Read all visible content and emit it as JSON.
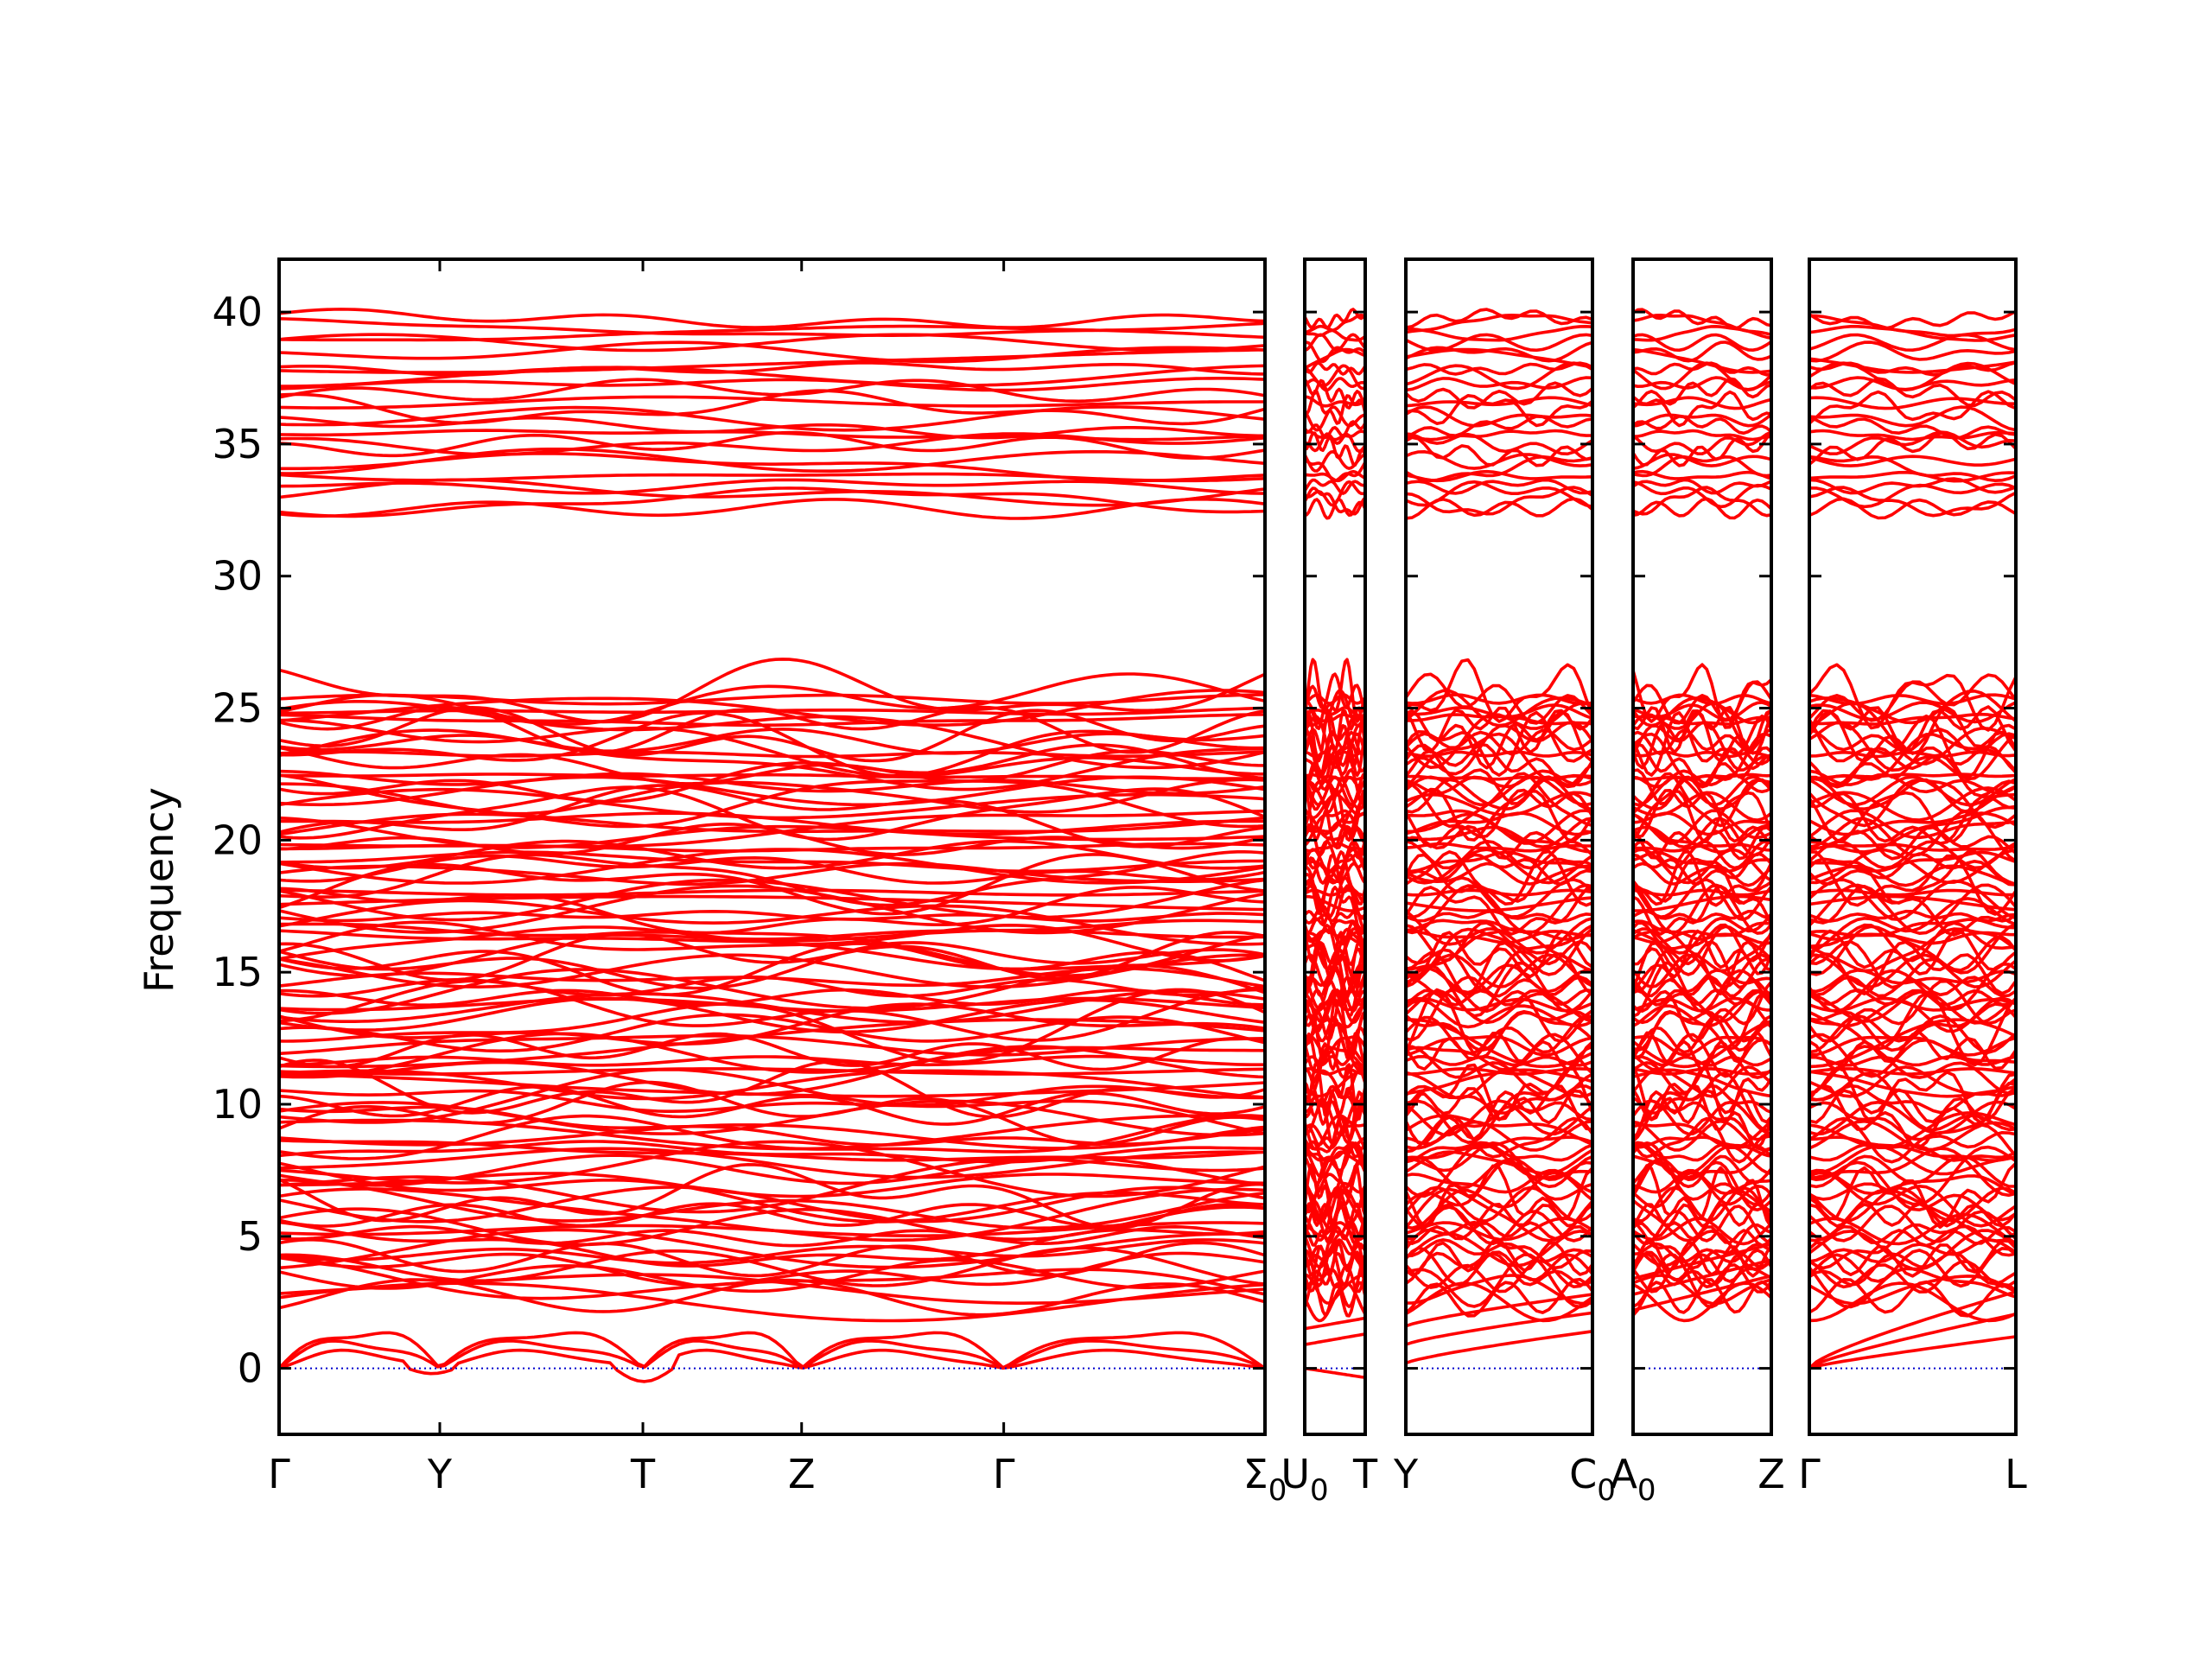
{
  "chart_data": {
    "type": "line",
    "title": "",
    "xlabel": "",
    "ylabel": "Frequency",
    "ylim": [
      -2.5,
      42
    ],
    "yticks": [
      0,
      5,
      10,
      15,
      20,
      25,
      30,
      35,
      40
    ],
    "grid": false,
    "legend": "none",
    "colors": {
      "bands": "#ff0000",
      "zero_line": "#0000cc",
      "frame": "#000000"
    },
    "segments": [
      {
        "points": [
          {
            "main": "Γ",
            "sub": ""
          },
          {
            "main": "Y",
            "sub": ""
          },
          {
            "main": "T",
            "sub": ""
          },
          {
            "main": "Z",
            "sub": ""
          },
          {
            "main": "Γ",
            "sub": ""
          },
          {
            "main": "Σ",
            "sub": "0"
          }
        ]
      },
      {
        "points": [
          {
            "main": "U",
            "sub": "0"
          },
          {
            "main": "T",
            "sub": ""
          }
        ]
      },
      {
        "points": [
          {
            "main": "Y",
            "sub": ""
          },
          {
            "main": "C",
            "sub": "0"
          }
        ]
      },
      {
        "points": [
          {
            "main": "A",
            "sub": "0"
          },
          {
            "main": "Z",
            "sub": ""
          }
        ]
      },
      {
        "points": [
          {
            "main": "Γ",
            "sub": ""
          },
          {
            "main": "L",
            "sub": ""
          }
        ]
      }
    ],
    "series_summary": {
      "low_branch_start": [
        0,
        0,
        0
      ],
      "upper_manifold_range": [
        32.4,
        39.8
      ],
      "middle_manifold_range": [
        0.3,
        25.7
      ],
      "gap": [
        25.7,
        32.4
      ],
      "negative_dips": [
        {
          "segment": 0,
          "near": "Y",
          "value": -0.2
        },
        {
          "segment": 0,
          "near": "T",
          "value": -0.5
        },
        {
          "segment": 1,
          "near": "T",
          "value": -0.4
        }
      ]
    }
  }
}
